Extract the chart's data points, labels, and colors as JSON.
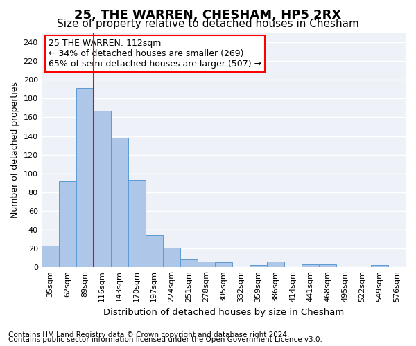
{
  "title": "25, THE WARREN, CHESHAM, HP5 2RX",
  "subtitle": "Size of property relative to detached houses in Chesham",
  "xlabel": "Distribution of detached houses by size in Chesham",
  "ylabel": "Number of detached properties",
  "footnote1": "Contains HM Land Registry data © Crown copyright and database right 2024.",
  "footnote2": "Contains public sector information licensed under the Open Government Licence v3.0.",
  "bins": [
    "35sqm",
    "62sqm",
    "89sqm",
    "116sqm",
    "143sqm",
    "170sqm",
    "197sqm",
    "224sqm",
    "251sqm",
    "278sqm",
    "305sqm",
    "332sqm",
    "359sqm",
    "386sqm",
    "414sqm",
    "441sqm",
    "468sqm",
    "495sqm",
    "522sqm",
    "549sqm",
    "576sqm"
  ],
  "values": [
    23,
    92,
    191,
    167,
    138,
    93,
    34,
    21,
    9,
    6,
    5,
    0,
    2,
    6,
    0,
    3,
    3,
    0,
    0,
    2,
    0
  ],
  "bar_color": "#aec6e8",
  "bar_edge_color": "#5b9bd5",
  "vline_x_index": 3,
  "vline_color": "red",
  "annotation_text": "25 THE WARREN: 112sqm\n← 34% of detached houses are smaller (269)\n65% of semi-detached houses are larger (507) →",
  "annotation_box_color": "white",
  "annotation_box_edge": "red",
  "ylim": [
    0,
    250
  ],
  "yticks": [
    0,
    20,
    40,
    60,
    80,
    100,
    120,
    140,
    160,
    180,
    200,
    220,
    240
  ],
  "background_color": "#eef2f8",
  "grid_color": "white",
  "title_fontsize": 13,
  "subtitle_fontsize": 11,
  "axis_label_fontsize": 9,
  "tick_fontsize": 8,
  "annotation_fontsize": 9,
  "footnote_fontsize": 7.5
}
